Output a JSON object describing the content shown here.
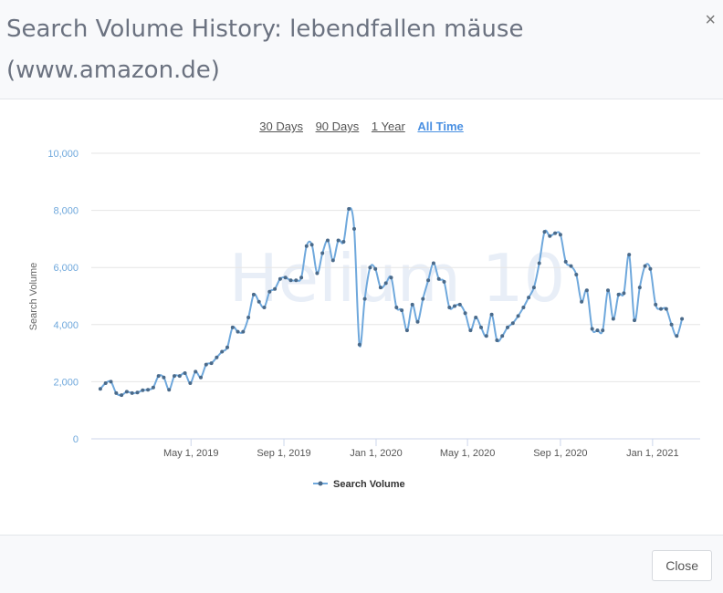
{
  "modal": {
    "title": "Search Volume History: lebendfallen mäuse (www.amazon.de)",
    "close_icon": "close-icon",
    "close_glyph": "×",
    "close_button_label": "Close"
  },
  "range_options": [
    {
      "label": "30 Days",
      "active": false
    },
    {
      "label": "90 Days",
      "active": false
    },
    {
      "label": "1 Year",
      "active": false
    },
    {
      "label": "All Time",
      "active": true
    }
  ],
  "watermark": "Helium 10",
  "chart_data": {
    "type": "line",
    "title": "",
    "xlabel": "",
    "ylabel": "Search Volume",
    "ylim": [
      0,
      10000
    ],
    "yticks": [
      0,
      2000,
      4000,
      6000,
      8000,
      10000
    ],
    "ytick_labels": [
      "0",
      "2,000",
      "4,000",
      "6,000",
      "8,000",
      "10,000"
    ],
    "xlim": [
      "2018-12-20",
      "2021-03-05"
    ],
    "xticks": [
      "2019-05-01",
      "2019-09-01",
      "2020-01-01",
      "2020-05-01",
      "2020-09-01",
      "2021-01-01"
    ],
    "xtick_labels": [
      "May 1, 2019",
      "Sep 1, 2019",
      "Jan 1, 2020",
      "May 1, 2020",
      "Sep 1, 2020",
      "Jan 1, 2021"
    ],
    "grid": true,
    "legend_position": "bottom-center",
    "colors": {
      "line": "#6fa8dc",
      "marker": "#4a6a8a",
      "grid": "#e6e6e6",
      "axis_text": "#6fa8dc",
      "watermark": "#e8eef7"
    },
    "series": [
      {
        "name": "Search Volume",
        "points": [
          [
            "2019-01-01",
            1750
          ],
          [
            "2019-01-08",
            1950
          ],
          [
            "2019-01-15",
            2000
          ],
          [
            "2019-01-22",
            1600
          ],
          [
            "2019-01-29",
            1530
          ],
          [
            "2019-02-05",
            1650
          ],
          [
            "2019-02-12",
            1600
          ],
          [
            "2019-02-19",
            1620
          ],
          [
            "2019-02-26",
            1700
          ],
          [
            "2019-03-05",
            1720
          ],
          [
            "2019-03-12",
            1800
          ],
          [
            "2019-03-19",
            2200
          ],
          [
            "2019-03-26",
            2150
          ],
          [
            "2019-04-02",
            1720
          ],
          [
            "2019-04-09",
            2200
          ],
          [
            "2019-04-16",
            2200
          ],
          [
            "2019-04-23",
            2300
          ],
          [
            "2019-04-30",
            1950
          ],
          [
            "2019-05-07",
            2350
          ],
          [
            "2019-05-14",
            2150
          ],
          [
            "2019-05-21",
            2600
          ],
          [
            "2019-05-28",
            2650
          ],
          [
            "2019-06-04",
            2850
          ],
          [
            "2019-06-11",
            3050
          ],
          [
            "2019-06-18",
            3200
          ],
          [
            "2019-06-25",
            3900
          ],
          [
            "2019-07-02",
            3750
          ],
          [
            "2019-07-09",
            3750
          ],
          [
            "2019-07-16",
            4250
          ],
          [
            "2019-07-23",
            5050
          ],
          [
            "2019-07-30",
            4800
          ],
          [
            "2019-08-06",
            4600
          ],
          [
            "2019-08-13",
            5150
          ],
          [
            "2019-08-20",
            5250
          ],
          [
            "2019-08-27",
            5600
          ],
          [
            "2019-09-03",
            5650
          ],
          [
            "2019-09-10",
            5550
          ],
          [
            "2019-09-17",
            5550
          ],
          [
            "2019-09-24",
            5650
          ],
          [
            "2019-10-01",
            6750
          ],
          [
            "2019-10-08",
            6800
          ],
          [
            "2019-10-15",
            5800
          ],
          [
            "2019-10-22",
            6500
          ],
          [
            "2019-10-29",
            6950
          ],
          [
            "2019-11-05",
            6250
          ],
          [
            "2019-11-12",
            6950
          ],
          [
            "2019-11-19",
            6900
          ],
          [
            "2019-11-26",
            8050
          ],
          [
            "2019-12-03",
            7350
          ],
          [
            "2019-12-10",
            3300
          ],
          [
            "2019-12-17",
            4900
          ],
          [
            "2019-12-24",
            6000
          ],
          [
            "2019-12-31",
            5950
          ],
          [
            "2020-01-07",
            5300
          ],
          [
            "2020-01-14",
            5450
          ],
          [
            "2020-01-21",
            5650
          ],
          [
            "2020-01-28",
            4600
          ],
          [
            "2020-02-04",
            4500
          ],
          [
            "2020-02-11",
            3800
          ],
          [
            "2020-02-18",
            4700
          ],
          [
            "2020-02-25",
            4100
          ],
          [
            "2020-03-03",
            4900
          ],
          [
            "2020-03-10",
            5550
          ],
          [
            "2020-03-17",
            6150
          ],
          [
            "2020-03-24",
            5600
          ],
          [
            "2020-03-31",
            5500
          ],
          [
            "2020-04-07",
            4600
          ],
          [
            "2020-04-14",
            4650
          ],
          [
            "2020-04-21",
            4700
          ],
          [
            "2020-04-28",
            4400
          ],
          [
            "2020-05-05",
            3800
          ],
          [
            "2020-05-12",
            4250
          ],
          [
            "2020-05-19",
            3900
          ],
          [
            "2020-05-26",
            3600
          ],
          [
            "2020-06-02",
            4350
          ],
          [
            "2020-06-09",
            3450
          ],
          [
            "2020-06-16",
            3600
          ],
          [
            "2020-06-23",
            3900
          ],
          [
            "2020-06-30",
            4050
          ],
          [
            "2020-07-07",
            4300
          ],
          [
            "2020-07-14",
            4600
          ],
          [
            "2020-07-21",
            4950
          ],
          [
            "2020-07-28",
            5300
          ],
          [
            "2020-08-04",
            6150
          ],
          [
            "2020-08-11",
            7250
          ],
          [
            "2020-08-18",
            7100
          ],
          [
            "2020-08-25",
            7200
          ],
          [
            "2020-09-01",
            7150
          ],
          [
            "2020-09-08",
            6200
          ],
          [
            "2020-09-15",
            6050
          ],
          [
            "2020-09-22",
            5750
          ],
          [
            "2020-09-29",
            4800
          ],
          [
            "2020-10-06",
            5200
          ],
          [
            "2020-10-13",
            3850
          ],
          [
            "2020-10-20",
            3800
          ],
          [
            "2020-10-27",
            3800
          ],
          [
            "2020-11-03",
            5200
          ],
          [
            "2020-11-10",
            4200
          ],
          [
            "2020-11-17",
            5050
          ],
          [
            "2020-11-24",
            5100
          ],
          [
            "2020-12-01",
            6450
          ],
          [
            "2020-12-08",
            4150
          ],
          [
            "2020-12-15",
            5300
          ],
          [
            "2020-12-22",
            6050
          ],
          [
            "2020-12-29",
            5950
          ],
          [
            "2021-01-05",
            4700
          ],
          [
            "2021-01-12",
            4550
          ],
          [
            "2021-01-19",
            4550
          ],
          [
            "2021-01-26",
            4000
          ],
          [
            "2021-02-02",
            3600
          ],
          [
            "2021-02-09",
            4200
          ]
        ]
      }
    ]
  }
}
